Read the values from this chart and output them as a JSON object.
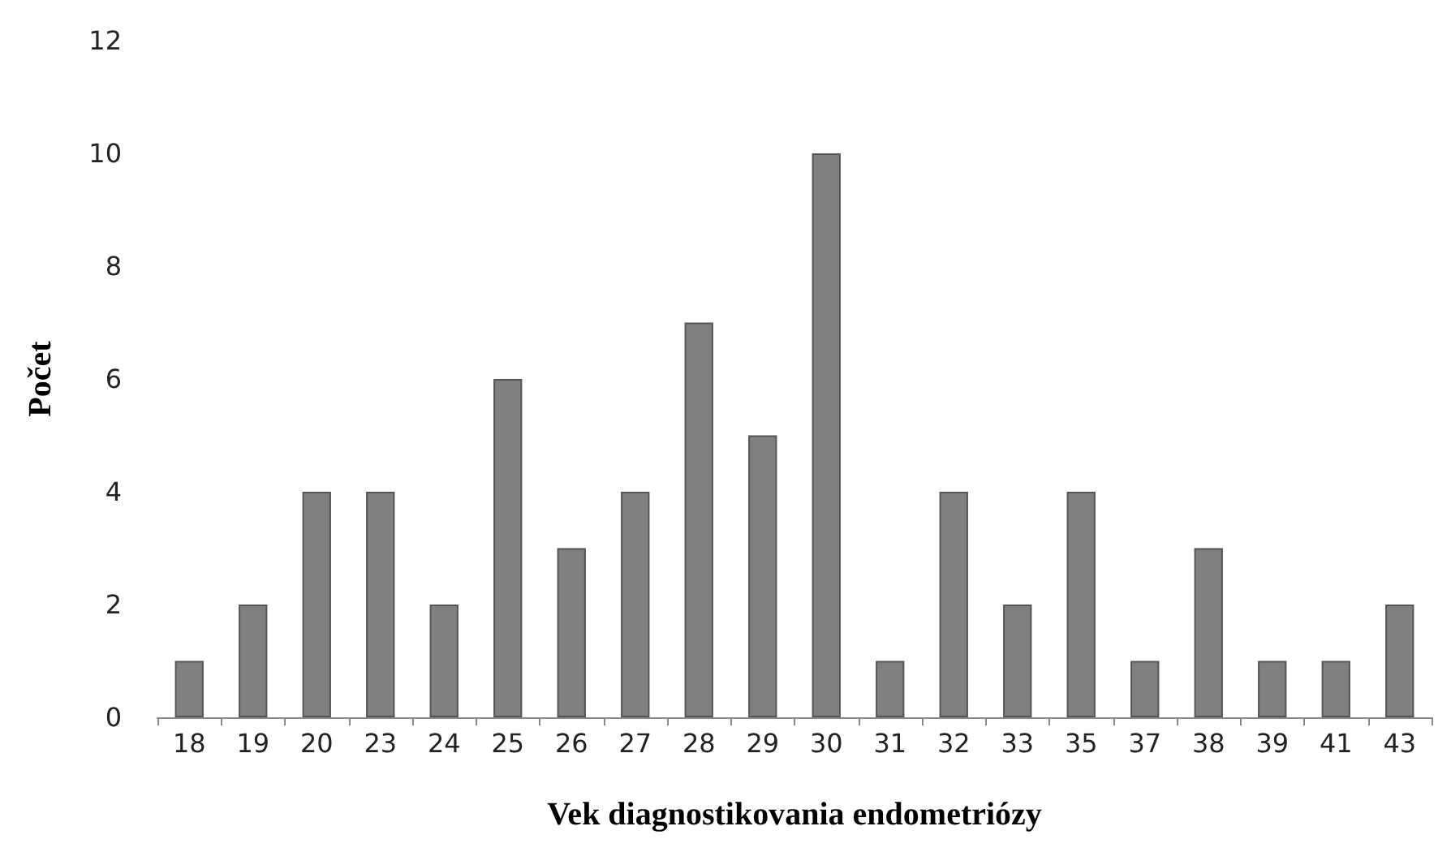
{
  "chart_data": {
    "type": "bar",
    "xlabel": "Vek diagnostikovania endometriózy",
    "ylabel": "Počet",
    "categories": [
      "18",
      "19",
      "20",
      "23",
      "24",
      "25",
      "26",
      "27",
      "28",
      "29",
      "30",
      "31",
      "32",
      "33",
      "35",
      "37",
      "38",
      "39",
      "41",
      "43"
    ],
    "values": [
      1,
      2,
      4,
      4,
      2,
      6,
      3,
      4,
      7,
      5,
      10,
      1,
      4,
      2,
      4,
      1,
      3,
      1,
      1,
      2
    ],
    "color": "#808080",
    "ylim": [
      0,
      12
    ],
    "yticks": [
      0,
      2,
      4,
      6,
      8,
      10,
      12
    ],
    "grid": false
  }
}
